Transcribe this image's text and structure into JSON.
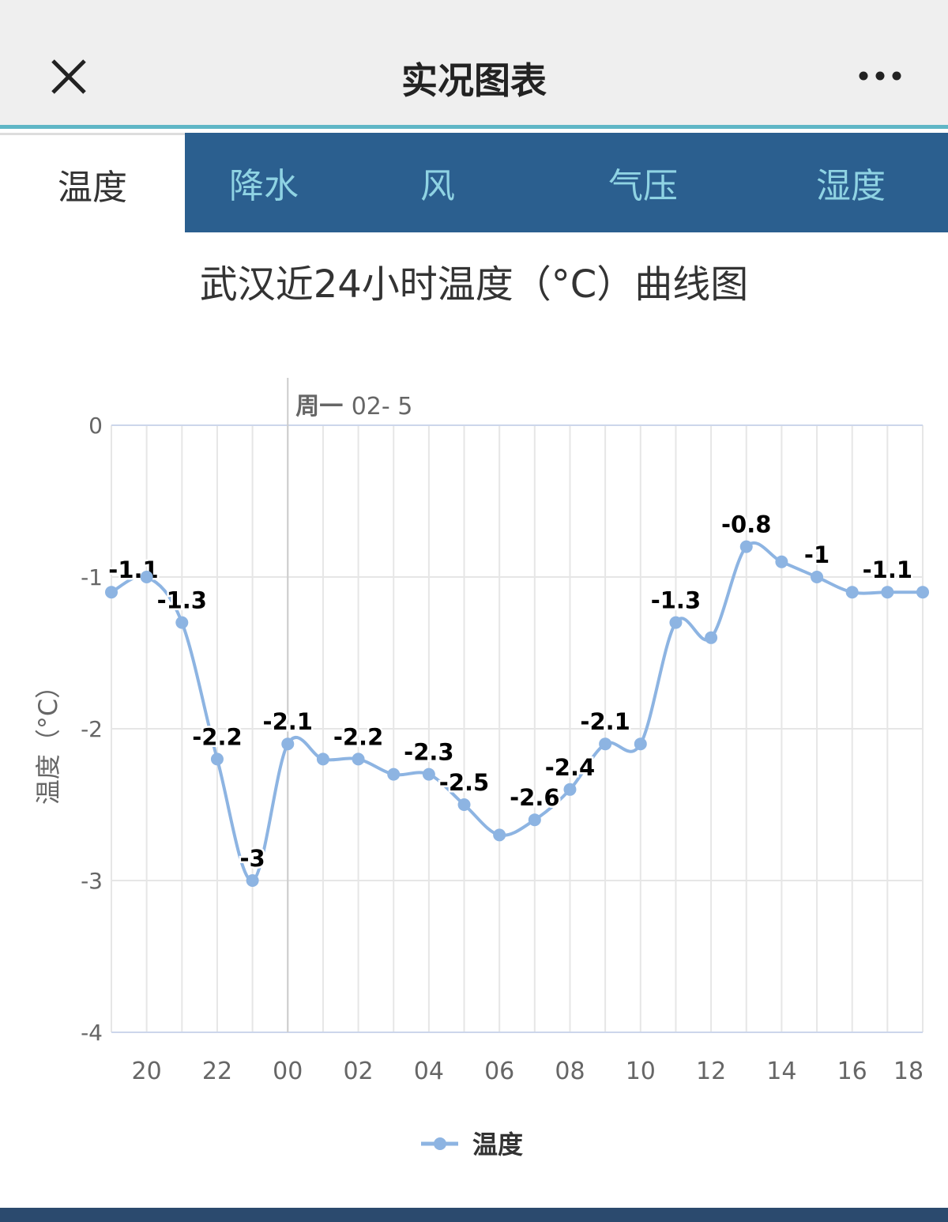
{
  "header": {
    "title": "实况图表",
    "close_icon": "close-icon",
    "more_icon": "more-icon"
  },
  "tabs": [
    {
      "label": "温度",
      "active": true
    },
    {
      "label": "降水"
    },
    {
      "label": "风"
    },
    {
      "label": "气压"
    },
    {
      "label": "湿度"
    }
  ],
  "chart_data": {
    "type": "line",
    "title": "武汉近24小时温度（°C）曲线图",
    "ylabel": "温度（°C）",
    "xlabel": "",
    "day_marker": "周一 02- 5",
    "ylim": [
      -4,
      0
    ],
    "yticks": [
      "0",
      "-1",
      "-2",
      "-3",
      "-4"
    ],
    "x": [
      "19",
      "20",
      "21",
      "22",
      "23",
      "00",
      "01",
      "02",
      "03",
      "04",
      "05",
      "06",
      "07",
      "08",
      "09",
      "10",
      "11",
      "12",
      "13",
      "14",
      "15",
      "16",
      "17",
      "18"
    ],
    "xtick_labels": [
      "20",
      "22",
      "00",
      "02",
      "04",
      "06",
      "08",
      "10",
      "12",
      "14",
      "16",
      "18"
    ],
    "series": [
      {
        "name": "温度",
        "color": "#8db4e2",
        "values": [
          -1.1,
          -1.0,
          -1.3,
          -2.2,
          -3.0,
          -2.1,
          -2.2,
          -2.2,
          -2.3,
          -2.3,
          -2.5,
          -2.7,
          -2.6,
          -2.4,
          -2.1,
          -2.1,
          -1.3,
          -1.4,
          -0.8,
          -0.9,
          -1.0,
          -1.1,
          -1.1,
          -1.1
        ],
        "data_labels": [
          "-1.1",
          "",
          "-1.3",
          "-2.2",
          "-3",
          "-2.1",
          "",
          "-2.2",
          "",
          "-2.3",
          "-2.5",
          "",
          "-2.6",
          "-2.4",
          "-2.1",
          "",
          "-1.3",
          "",
          "-0.8",
          "",
          "-1",
          "",
          "-1.1",
          ""
        ]
      }
    ],
    "grid": true,
    "legend": "bottom-center"
  }
}
